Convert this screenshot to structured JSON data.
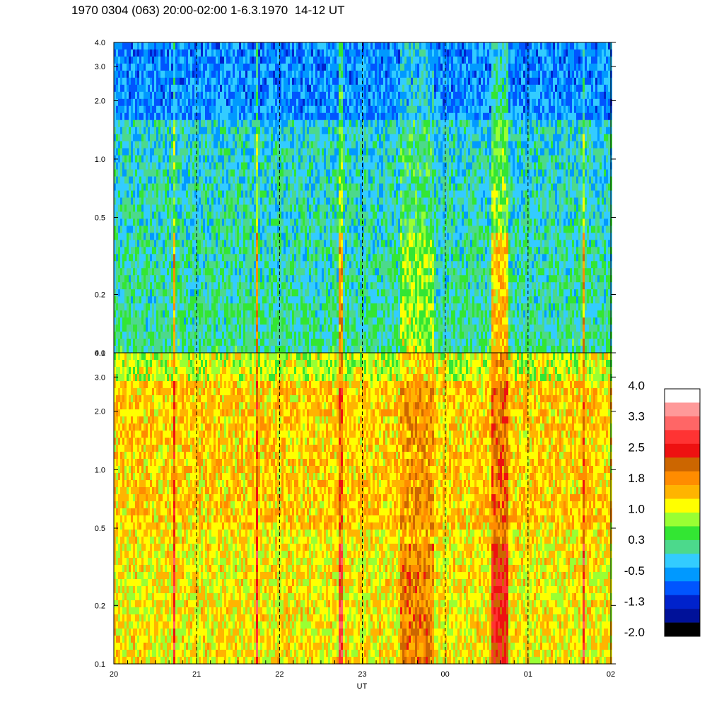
{
  "title": "1970 0304 (063) 20:00-02:00 1-6.3.1970  14-12 UT",
  "chart_data": {
    "type": "heatmap",
    "xlabel": "UT",
    "x_ticks": [
      "20",
      "21",
      "22",
      "23",
      "00",
      "01",
      "02"
    ],
    "x_range_hours": [
      20,
      26
    ],
    "dashed_vertical_lines_at_hours": [
      21,
      22,
      23,
      24,
      25
    ],
    "y_scale": "log",
    "y_range": [
      0.1,
      4.0
    ],
    "y_ticks": [
      {
        "value": 0.1,
        "label": "0.1"
      },
      {
        "value": 0.2,
        "label": "0.2"
      },
      {
        "value": 0.5,
        "label": "0.5"
      },
      {
        "value": 1.0,
        "label": "1.0"
      },
      {
        "value": 2.0,
        "label": "2.0"
      },
      {
        "value": 3.0,
        "label": "3.0"
      },
      {
        "value": 4.0,
        "label": "4.0"
      }
    ],
    "panels": [
      {
        "name": "upper",
        "dominant_level": 0.0
      },
      {
        "name": "lower",
        "dominant_level": 1.4
      }
    ],
    "colorbar": {
      "range": [
        -2.0,
        4.0
      ],
      "labels": [
        "4.0",
        "3.3",
        "2.5",
        "1.8",
        "1.0",
        "0.3",
        "-0.5",
        "-1.3",
        "-2.0"
      ],
      "colors": [
        "#ffffff",
        "#ff9999",
        "#ff6666",
        "#ff3333",
        "#ee1111",
        "#cc6600",
        "#ff8c00",
        "#ffb400",
        "#ffff00",
        "#99ff33",
        "#33e633",
        "#4cd98c",
        "#33ccff",
        "#0099ff",
        "#0055ff",
        "#0022cc",
        "#001199",
        "#000000"
      ]
    }
  }
}
